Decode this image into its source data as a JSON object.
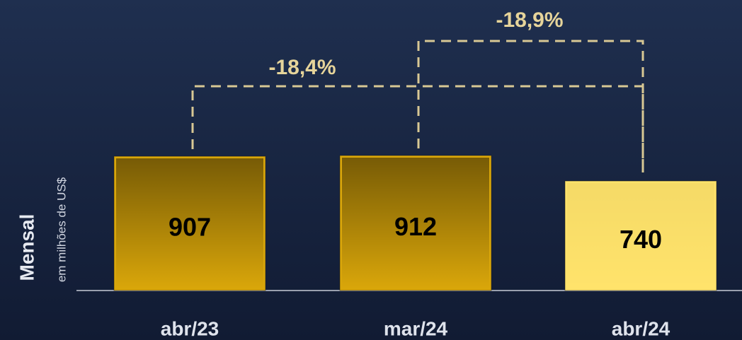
{
  "chart_data": {
    "type": "bar",
    "y_label": "Mensal",
    "y_sublabel": "em milhões de US$",
    "categories": [
      "abr/23",
      "mar/24",
      "abr/24"
    ],
    "values": [
      907,
      912,
      740
    ],
    "colors": [
      "#d9a60a",
      "#d9a60a",
      "#ffe36b"
    ],
    "annotations": [
      "-18,4%",
      "-18,9%"
    ]
  }
}
